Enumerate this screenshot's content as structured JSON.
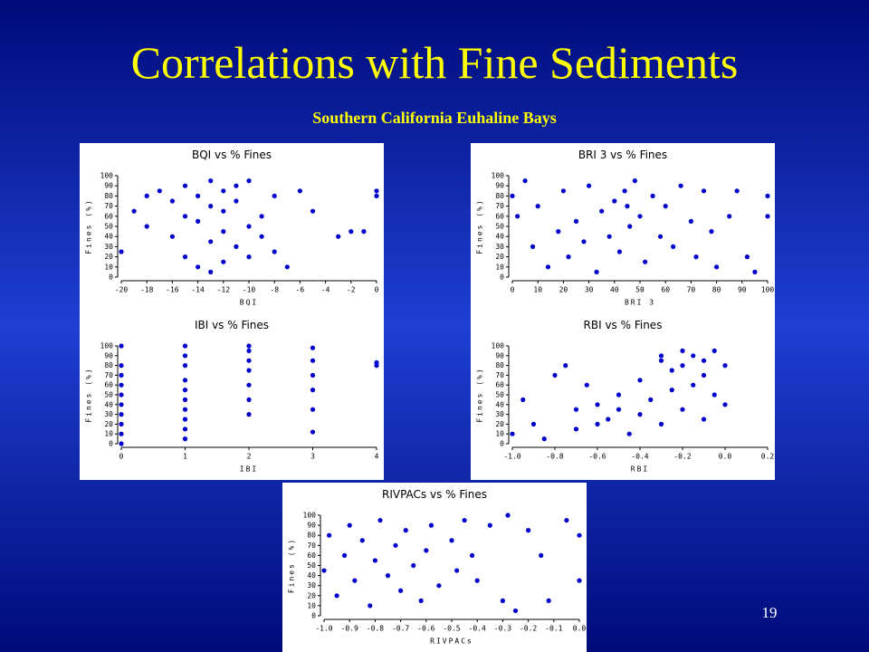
{
  "slide": {
    "title": "Correlations with Fine Sediments",
    "subtitle": "Southern California Euhaline Bays",
    "page_number": "19"
  },
  "chart_data": [
    {
      "type": "scatter",
      "title": "BQI vs % Fines",
      "xlabel": "BQI",
      "ylabel": "Fines (%)",
      "color": "#0000cc",
      "xlim": [
        -20,
        0
      ],
      "xticks": [
        -20,
        -18,
        -16,
        -14,
        -12,
        -10,
        -8,
        -6,
        -4,
        -2,
        0
      ],
      "ylim": [
        0,
        100
      ],
      "yticks": [
        0,
        10,
        20,
        30,
        40,
        50,
        60,
        70,
        80,
        90,
        100
      ],
      "x": [
        -20,
        -19,
        -18,
        -18,
        -17,
        -16,
        -16,
        -15,
        -15,
        -15,
        -14,
        -14,
        -14,
        -13,
        -13,
        -13,
        -13,
        -12,
        -12,
        -12,
        -12,
        -11,
        -11,
        -11,
        -10,
        -10,
        -10,
        -9,
        -9,
        -8,
        -8,
        -7,
        -6,
        -5,
        -3,
        -2,
        -1,
        0,
        0
      ],
      "values": [
        25,
        65,
        80,
        50,
        85,
        40,
        75,
        60,
        20,
        90,
        10,
        55,
        80,
        35,
        70,
        95,
        5,
        45,
        85,
        65,
        15,
        30,
        75,
        90,
        50,
        20,
        95,
        60,
        40,
        80,
        25,
        10,
        85,
        65,
        40,
        45,
        45,
        80,
        85
      ]
    },
    {
      "type": "scatter",
      "title": "BRI 3 vs % Fines",
      "xlabel": "BRI 3",
      "ylabel": "Fines (%)",
      "color": "#0000cc",
      "xlim": [
        0,
        100
      ],
      "xticks": [
        0,
        10,
        20,
        30,
        40,
        50,
        60,
        70,
        80,
        90,
        100
      ],
      "ylim": [
        0,
        100
      ],
      "yticks": [
        0,
        10,
        20,
        30,
        40,
        50,
        60,
        70,
        80,
        90,
        100
      ],
      "x": [
        0,
        2,
        5,
        8,
        10,
        14,
        18,
        20,
        22,
        25,
        28,
        30,
        33,
        35,
        38,
        40,
        42,
        44,
        45,
        46,
        48,
        50,
        52,
        55,
        58,
        60,
        63,
        66,
        70,
        72,
        75,
        78,
        80,
        85,
        88,
        92,
        95,
        100,
        100
      ],
      "values": [
        80,
        60,
        95,
        30,
        70,
        10,
        45,
        85,
        20,
        55,
        35,
        90,
        5,
        65,
        40,
        75,
        25,
        85,
        70,
        50,
        95,
        60,
        15,
        80,
        40,
        70,
        30,
        90,
        55,
        20,
        85,
        45,
        10,
        60,
        85,
        20,
        5,
        80,
        60
      ]
    },
    {
      "type": "scatter",
      "title": "IBI vs % Fines",
      "xlabel": "IBI",
      "ylabel": "Fines (%)",
      "color": "#0000cc",
      "xlim": [
        0,
        4
      ],
      "xticks": [
        0,
        1,
        2,
        3,
        4
      ],
      "ylim": [
        0,
        100
      ],
      "yticks": [
        0,
        10,
        20,
        30,
        40,
        50,
        60,
        70,
        80,
        90,
        100
      ],
      "x": [
        0,
        0,
        0,
        0,
        0,
        0,
        0,
        0,
        0,
        0,
        1,
        1,
        1,
        1,
        1,
        1,
        1,
        1,
        1,
        1,
        2,
        2,
        2,
        2,
        2,
        2,
        2,
        3,
        3,
        3,
        3,
        3,
        3,
        4,
        4
      ],
      "values": [
        0,
        10,
        20,
        30,
        40,
        50,
        60,
        70,
        80,
        100,
        5,
        15,
        25,
        35,
        45,
        55,
        65,
        80,
        90,
        100,
        30,
        45,
        60,
        75,
        85,
        95,
        100,
        12,
        35,
        55,
        70,
        85,
        98,
        80,
        83
      ]
    },
    {
      "type": "scatter",
      "title": "RBI vs % Fines",
      "xlabel": "RBI",
      "ylabel": "Fines (%)",
      "color": "#0000cc",
      "xlim": [
        -1,
        0.2
      ],
      "xticks": [
        {
          "value": -1,
          "label": "-1.0"
        },
        -0.8,
        -0.6,
        -0.4,
        -0.2,
        {
          "value": 0,
          "label": "0.0"
        },
        0.2
      ],
      "ylim": [
        0,
        100
      ],
      "yticks": [
        0,
        10,
        20,
        30,
        40,
        50,
        60,
        70,
        80,
        90,
        100
      ],
      "x": [
        -1,
        -0.95,
        -0.9,
        -0.85,
        -0.8,
        -0.75,
        -0.7,
        -0.7,
        -0.65,
        -0.6,
        -0.55,
        -0.5,
        -0.45,
        -0.4,
        -0.4,
        -0.35,
        -0.3,
        -0.3,
        -0.25,
        -0.25,
        -0.2,
        -0.2,
        -0.2,
        -0.15,
        -0.15,
        -0.1,
        -0.1,
        -0.1,
        -0.05,
        -0.05,
        0,
        0,
        -0.3,
        -0.5,
        -0.6
      ],
      "values": [
        10,
        45,
        20,
        5,
        70,
        80,
        35,
        15,
        60,
        40,
        25,
        50,
        10,
        65,
        30,
        45,
        85,
        20,
        75,
        55,
        95,
        80,
        35,
        90,
        60,
        70,
        25,
        85,
        95,
        50,
        80,
        40,
        90,
        35,
        20
      ]
    },
    {
      "type": "scatter",
      "title": "RIVPACs vs % Fines",
      "xlabel": "RIVPACs",
      "ylabel": "Fines (%)",
      "color": "#0000cc",
      "xlim": [
        -1,
        0
      ],
      "xticks": [
        {
          "value": -1,
          "label": "-1.0"
        },
        -0.9,
        -0.8,
        -0.7,
        -0.6,
        -0.5,
        -0.4,
        -0.3,
        -0.2,
        -0.1,
        {
          "value": 0,
          "label": "0.0"
        }
      ],
      "ylim": [
        0,
        100
      ],
      "yticks": [
        0,
        10,
        20,
        30,
        40,
        50,
        60,
        70,
        80,
        90,
        100
      ],
      "x": [
        -1,
        -0.98,
        -0.95,
        -0.92,
        -0.9,
        -0.88,
        -0.85,
        -0.82,
        -0.8,
        -0.78,
        -0.75,
        -0.72,
        -0.7,
        -0.68,
        -0.65,
        -0.62,
        -0.6,
        -0.58,
        -0.55,
        -0.5,
        -0.48,
        -0.45,
        -0.42,
        -0.4,
        -0.35,
        -0.3,
        -0.28,
        -0.25,
        -0.2,
        -0.15,
        -0.12,
        -0.05,
        0,
        0
      ],
      "values": [
        45,
        80,
        20,
        60,
        90,
        35,
        75,
        10,
        55,
        95,
        40,
        70,
        25,
        85,
        50,
        15,
        65,
        90,
        30,
        75,
        45,
        95,
        60,
        35,
        90,
        15,
        100,
        5,
        85,
        60,
        15,
        95,
        80,
        35
      ]
    }
  ]
}
